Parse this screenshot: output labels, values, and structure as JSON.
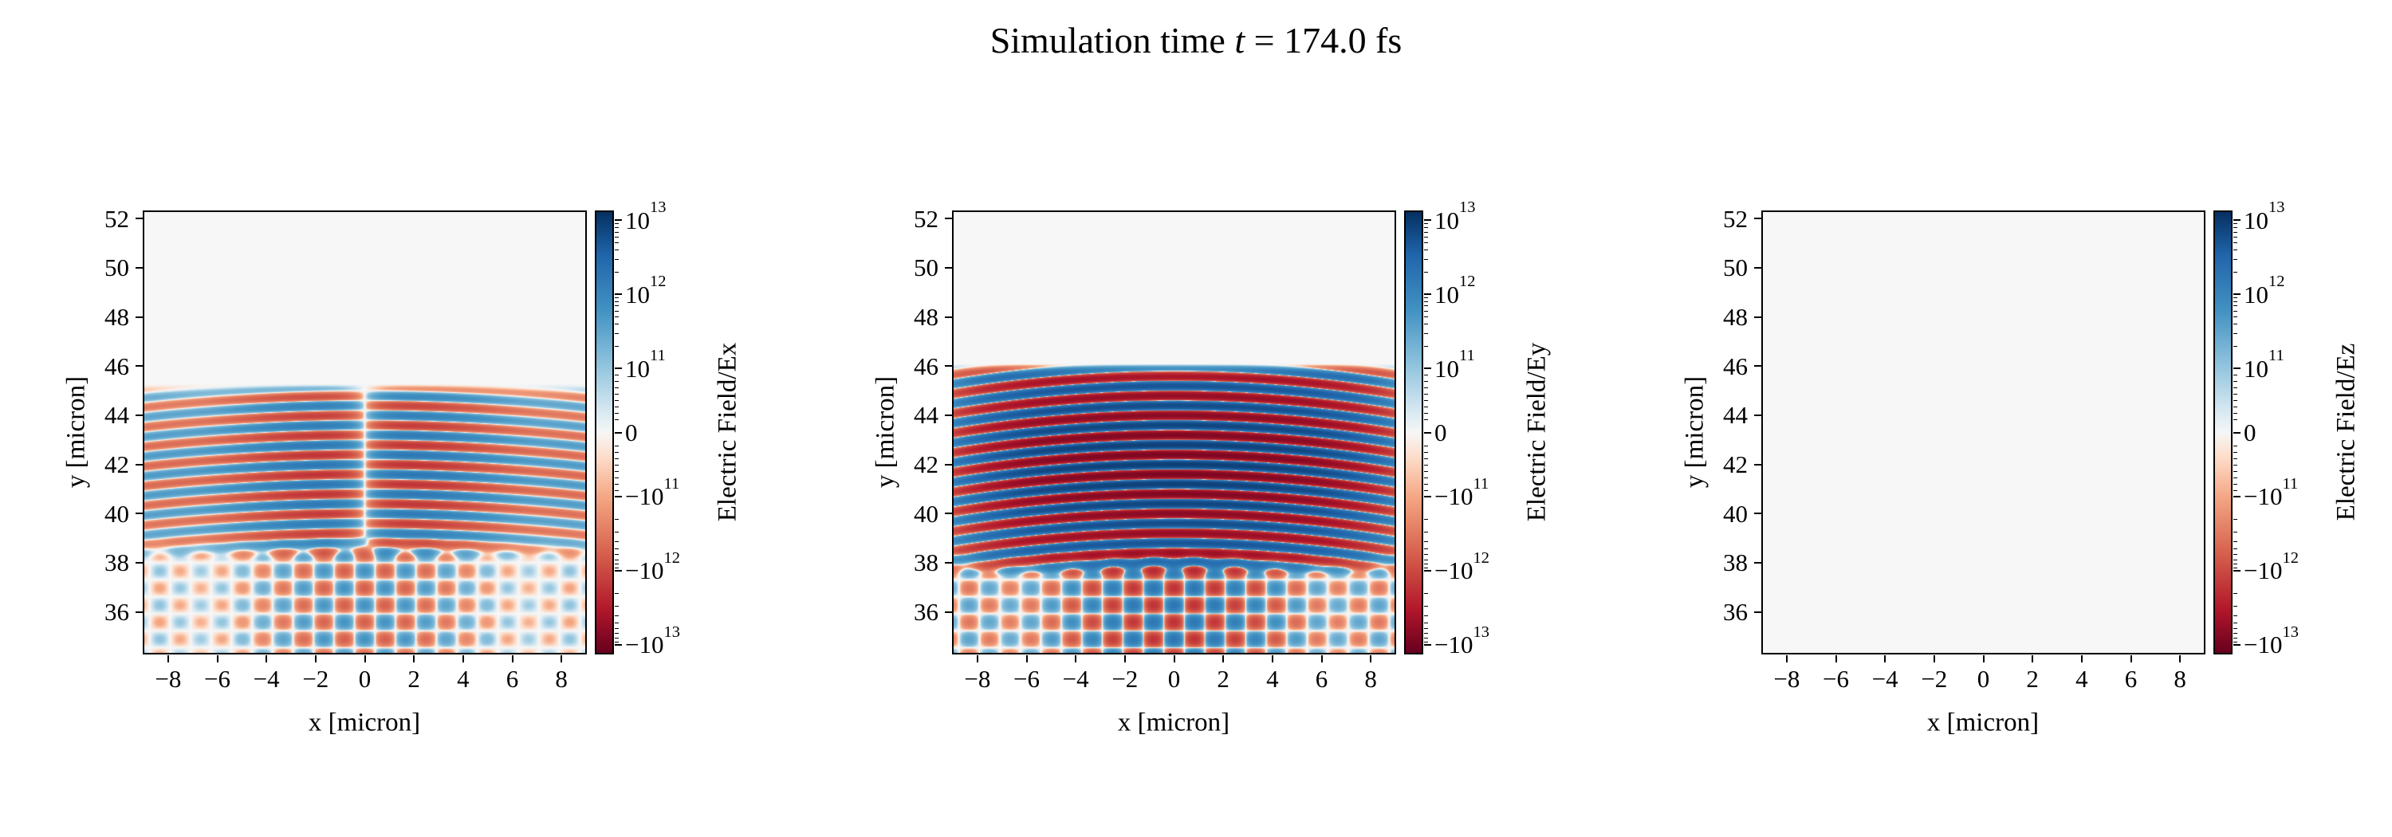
{
  "title": {
    "prefix": "Simulation time ",
    "variable": "t",
    "suffix": " = 174.0 fs"
  },
  "colors": {
    "background": "#ffffff",
    "spine": "#000000",
    "tick": "#000000",
    "zero_field": "#f7f7f7"
  },
  "colormap_stops": [
    [
      -1.0,
      "#67001f"
    ],
    [
      -0.8,
      "#b2182b"
    ],
    [
      -0.55,
      "#d6604d"
    ],
    [
      -0.3,
      "#f4a582"
    ],
    [
      -0.12,
      "#fddbc7"
    ],
    [
      0.0,
      "#f7f7f7"
    ],
    [
      0.12,
      "#d1e5f0"
    ],
    [
      0.3,
      "#92c5de"
    ],
    [
      0.55,
      "#4393c3"
    ],
    [
      0.8,
      "#2166ac"
    ],
    [
      1.0,
      "#053061"
    ]
  ],
  "chart_data": [
    {
      "type": "heatmap",
      "component": "Ex",
      "xlabel": "x [micron]",
      "ylabel": "y [micron]",
      "x_range": [
        -9,
        9
      ],
      "y_range": [
        34.3,
        52.3
      ],
      "x_tick_values": [
        -8,
        -6,
        -4,
        -2,
        0,
        2,
        4,
        6,
        8
      ],
      "x_tick_labels": [
        "−8",
        "−6",
        "−4",
        "−2",
        "0",
        "2",
        "4",
        "6",
        "8"
      ],
      "y_tick_values": [
        36,
        38,
        40,
        42,
        44,
        46,
        48,
        50,
        52
      ],
      "y_tick_labels": [
        "36",
        "38",
        "40",
        "42",
        "44",
        "46",
        "48",
        "50",
        "52"
      ],
      "colorbar": {
        "label": "Electric Field/Ex",
        "scale": "symlog",
        "linthresh": 100000000000.0,
        "vmin": -13000000000000.0,
        "vmax": 13000000000000.0,
        "tick_values": [
          10000000000000.0,
          1000000000000.0,
          100000000000.0,
          0,
          -100000000000.0,
          -1000000000000.0,
          -10000000000000.0
        ],
        "tick_labels": [
          "10^13",
          "10^12",
          "10^11",
          "0",
          "−10^11",
          "−10^12",
          "−10^13"
        ],
        "colormap": "RdBu"
      },
      "field": {
        "description": "Transverse Ex of focused laser: horizontal fringes y=38-45.3 with null line at x=0, crossed-wave fan below y=39",
        "wavelength_y": 0.8,
        "peak_amplitude": 2200000000000.0,
        "stripe_region_y": [
          38.0,
          45.3
        ],
        "profile_peak_y": 41.6,
        "x_profile": "odd-null-at-center",
        "curvature": 0.006,
        "crosshatch_below_y": 39.2,
        "crosshatch_amplitude": 600000000000.0
      }
    },
    {
      "type": "heatmap",
      "component": "Ey",
      "xlabel": "x [micron]",
      "ylabel": "y [micron]",
      "x_range": [
        -9,
        9
      ],
      "y_range": [
        34.3,
        52.3
      ],
      "x_tick_values": [
        -8,
        -6,
        -4,
        -2,
        0,
        2,
        4,
        6,
        8
      ],
      "x_tick_labels": [
        "−8",
        "−6",
        "−4",
        "−2",
        "0",
        "2",
        "4",
        "6",
        "8"
      ],
      "y_tick_values": [
        36,
        38,
        40,
        42,
        44,
        46,
        48,
        50,
        52
      ],
      "y_tick_labels": [
        "36",
        "38",
        "40",
        "42",
        "44",
        "46",
        "48",
        "50",
        "52"
      ],
      "colorbar": {
        "label": "Electric Field/Ey",
        "scale": "symlog",
        "linthresh": 100000000000.0,
        "vmin": -13000000000000.0,
        "vmax": 13000000000000.0,
        "tick_values": [
          10000000000000.0,
          1000000000000.0,
          100000000000.0,
          0,
          -100000000000.0,
          -1000000000000.0,
          -10000000000000.0
        ],
        "tick_labels": [
          "10^13",
          "10^12",
          "10^11",
          "0",
          "−10^11",
          "−10^12",
          "−10^13"
        ],
        "colormap": "RdBu"
      },
      "field": {
        "description": "Dominant Ey of focused laser: strong saturated curved fringes y=37.4-46.1 across full width, interference fan below y=38.8",
        "wavelength_y": 0.8,
        "peak_amplitude": 9000000000000.0,
        "stripe_region_y": [
          37.4,
          46.1
        ],
        "profile_peak_y": 42.0,
        "x_profile": "even",
        "curvature": 0.009,
        "crosshatch_below_y": 38.8,
        "crosshatch_amplitude": 1800000000000.0
      }
    },
    {
      "type": "heatmap",
      "component": "Ez",
      "xlabel": "x [micron]",
      "ylabel": "y [micron]",
      "x_range": [
        -9,
        9
      ],
      "y_range": [
        34.3,
        52.3
      ],
      "x_tick_values": [
        -8,
        -6,
        -4,
        -2,
        0,
        2,
        4,
        6,
        8
      ],
      "x_tick_labels": [
        "−8",
        "−6",
        "−4",
        "−2",
        "0",
        "2",
        "4",
        "6",
        "8"
      ],
      "y_tick_values": [
        36,
        38,
        40,
        42,
        44,
        46,
        48,
        50,
        52
      ],
      "y_tick_labels": [
        "36",
        "38",
        "40",
        "42",
        "44",
        "46",
        "48",
        "50",
        "52"
      ],
      "colorbar": {
        "label": "Electric Field/Ez",
        "scale": "symlog",
        "linthresh": 100000000000.0,
        "vmin": -13000000000000.0,
        "vmax": 13000000000000.0,
        "tick_values": [
          10000000000000.0,
          1000000000000.0,
          100000000000.0,
          0,
          -100000000000.0,
          -1000000000000.0,
          -10000000000000.0
        ],
        "tick_labels": [
          "10^13",
          "10^12",
          "10^11",
          "0",
          "−10^11",
          "−10^12",
          "−10^13"
        ],
        "colormap": "RdBu"
      },
      "field": {
        "description": "Ez is zero everywhere (uniform zero-value background)",
        "wavelength_y": 0.8,
        "peak_amplitude": 0,
        "stripe_region_y": [
          38.0,
          45.3
        ],
        "profile_peak_y": 41.6,
        "x_profile": "even",
        "curvature": 0.006,
        "crosshatch_below_y": 39.0,
        "crosshatch_amplitude": 0
      }
    }
  ],
  "layout_meta": {
    "panel_count": "3"
  }
}
